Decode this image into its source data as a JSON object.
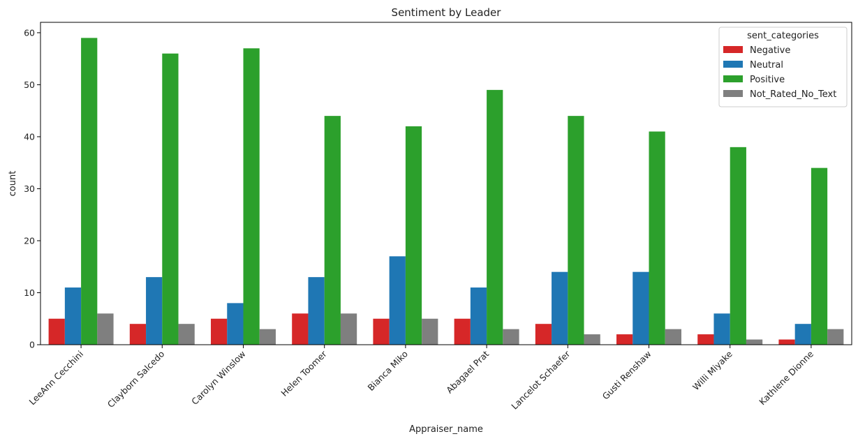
{
  "chart_data": {
    "type": "bar",
    "title": "Sentiment by Leader",
    "xlabel": "Appraiser_name",
    "ylabel": "count",
    "ylim": [
      0,
      62
    ],
    "yticks": [
      0,
      10,
      20,
      30,
      40,
      50,
      60
    ],
    "grid": false,
    "legend": {
      "title": "sent_categories",
      "position": "top-right"
    },
    "categories": [
      "LeeAnn Cecchini",
      "Clayborn Salcedo",
      "Carolyn Winslow",
      "Helen Toomer",
      "Bianca Miko",
      "Abagael Prat",
      "Lancelot Schaefer",
      "Gusti Renshaw",
      "Willi Miyake",
      "Kathlene Dionne"
    ],
    "series": [
      {
        "name": "Negative",
        "color": "#d62728",
        "values": [
          5,
          4,
          5,
          6,
          5,
          5,
          4,
          2,
          2,
          1
        ]
      },
      {
        "name": "Neutral",
        "color": "#1f77b4",
        "values": [
          11,
          13,
          8,
          13,
          17,
          11,
          14,
          14,
          6,
          4
        ]
      },
      {
        "name": "Positive",
        "color": "#2ca02c",
        "values": [
          59,
          56,
          57,
          44,
          42,
          49,
          44,
          41,
          38,
          34
        ]
      },
      {
        "name": "Not_Rated_No_Text",
        "color": "#7f7f7f",
        "values": [
          6,
          4,
          3,
          6,
          5,
          3,
          2,
          3,
          1,
          3
        ]
      }
    ]
  }
}
